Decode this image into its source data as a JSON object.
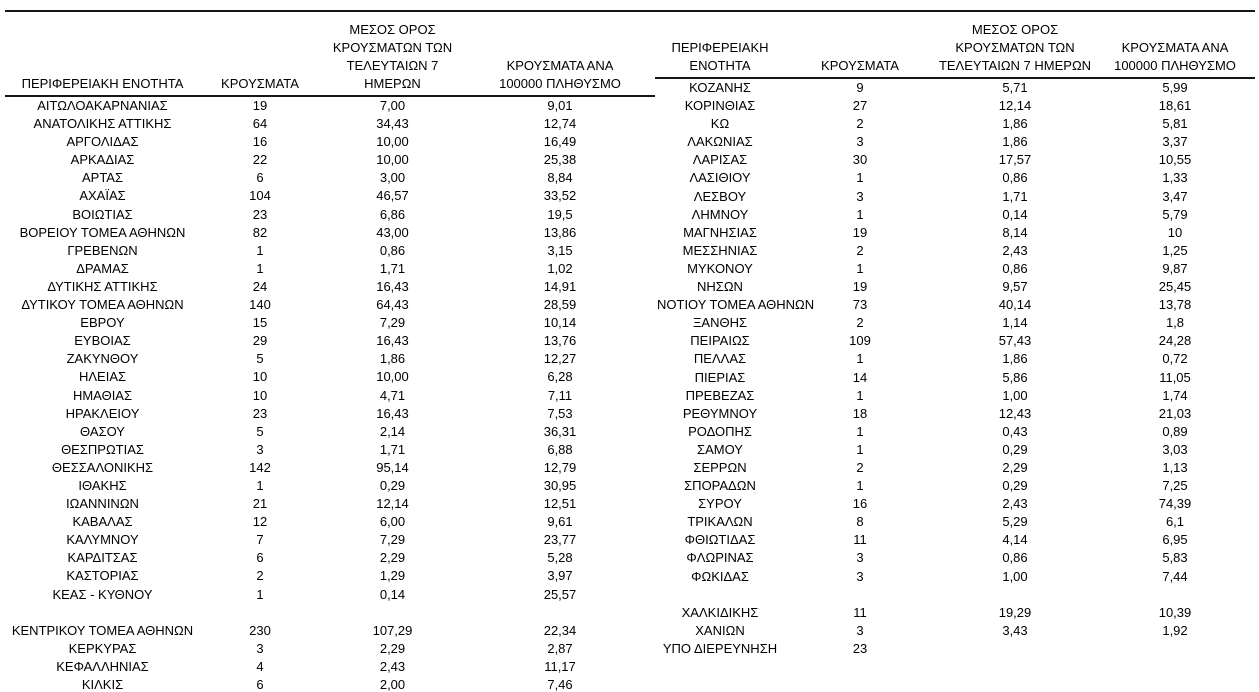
{
  "table": {
    "headers": {
      "region": "ΠΕΡΙΦΕΡΕΙΑΚΗ ΕΝΟΤΗΤΑ",
      "cases": "ΚΡΟΥΣΜΑΤΑ",
      "avg7": "ΜΕΣΟΣ ΟΡΟΣ\nΚΡΟΥΣΜΑΤΩΝ ΤΩΝ\nΤΕΛΕΥΤΑΙΩΝ 7 ΗΜΕΡΩΝ",
      "per100k": "ΚΡΟΥΣΜΑΤΑ ΑΝΑ\n100000 ΠΛΗΘΥΣΜΟ"
    },
    "left_rows": [
      [
        "ΑΙΤΩΛΟΑΚΑΡΝΑΝΙΑΣ",
        "19",
        "7,00",
        "9,01"
      ],
      [
        "ΑΝΑΤΟΛΙΚΗΣ ΑΤΤΙΚΗΣ",
        "64",
        "34,43",
        "12,74"
      ],
      [
        "ΑΡΓΟΛΙΔΑΣ",
        "16",
        "10,00",
        "16,49"
      ],
      [
        "ΑΡΚΑΔΙΑΣ",
        "22",
        "10,00",
        "25,38"
      ],
      [
        "ΑΡΤΑΣ",
        "6",
        "3,00",
        "8,84"
      ],
      [
        "ΑΧΑΪΑΣ",
        "104",
        "46,57",
        "33,52"
      ],
      [
        "ΒΟΙΩΤΙΑΣ",
        "23",
        "6,86",
        "19,5"
      ],
      [
        "ΒΟΡΕΙΟΥ ΤΟΜΕΑ ΑΘΗΝΩΝ",
        "82",
        "43,00",
        "13,86"
      ],
      [
        "ΓΡΕΒΕΝΩΝ",
        "1",
        "0,86",
        "3,15"
      ],
      [
        "ΔΡΑΜΑΣ",
        "1",
        "1,71",
        "1,02"
      ],
      [
        "ΔΥΤΙΚΗΣ ΑΤΤΙΚΗΣ",
        "24",
        "16,43",
        "14,91"
      ],
      [
        "ΔΥΤΙΚΟΥ ΤΟΜΕΑ ΑΘΗΝΩΝ",
        "140",
        "64,43",
        "28,59"
      ],
      [
        "ΕΒΡΟΥ",
        "15",
        "7,29",
        "10,14"
      ],
      [
        "ΕΥΒΟΙΑΣ",
        "29",
        "16,43",
        "13,76"
      ],
      [
        "ΖΑΚΥΝΘΟΥ",
        "5",
        "1,86",
        "12,27"
      ],
      [
        "ΗΛΕΙΑΣ",
        "10",
        "10,00",
        "6,28"
      ],
      [
        "ΗΜΑΘΙΑΣ",
        "10",
        "4,71",
        "7,11"
      ],
      [
        "ΗΡΑΚΛΕΙΟΥ",
        "23",
        "16,43",
        "7,53"
      ],
      [
        "ΘΑΣΟΥ",
        "5",
        "2,14",
        "36,31"
      ],
      [
        "ΘΕΣΠΡΩΤΙΑΣ",
        "3",
        "1,71",
        "6,88"
      ],
      [
        "ΘΕΣΣΑΛΟΝΙΚΗΣ",
        "142",
        "95,14",
        "12,79"
      ],
      [
        "ΙΘΑΚΗΣ",
        "1",
        "0,29",
        "30,95"
      ],
      [
        "ΙΩΑΝΝΙΝΩΝ",
        "21",
        "12,14",
        "12,51"
      ],
      [
        "ΚΑΒΑΛΑΣ",
        "12",
        "6,00",
        "9,61"
      ],
      [
        "ΚΑΛΥΜΝΟΥ",
        "7",
        "7,29",
        "23,77"
      ],
      [
        "ΚΑΡΔΙΤΣΑΣ",
        "6",
        "2,29",
        "5,28"
      ],
      [
        "ΚΑΣΤΟΡΙΑΣ",
        "2",
        "1,29",
        "3,97"
      ],
      [
        "ΚΕΑΣ - ΚΥΘΝΟΥ",
        "1",
        "0,14",
        "25,57"
      ],
      null,
      [
        "ΚΕΝΤΡΙΚΟΥ ΤΟΜΕΑ ΑΘΗΝΩΝ",
        "230",
        "107,29",
        "22,34"
      ],
      [
        "ΚΕΡΚΥΡΑΣ",
        "3",
        "2,29",
        "2,87"
      ],
      [
        "ΚΕΦΑΛΛΗΝΙΑΣ",
        "4",
        "2,43",
        "11,17"
      ],
      [
        "ΚΙΛΚΙΣ",
        "6",
        "2,00",
        "7,46"
      ]
    ],
    "right_rows": [
      [
        "ΚΟΖΑΝΗΣ",
        "9",
        "5,71",
        "5,99"
      ],
      [
        "ΚΟΡΙΝΘΙΑΣ",
        "27",
        "12,14",
        "18,61"
      ],
      [
        "ΚΩ",
        "2",
        "1,86",
        "5,81"
      ],
      [
        "ΛΑΚΩΝΙΑΣ",
        "3",
        "1,86",
        "3,37"
      ],
      [
        "ΛΑΡΙΣΑΣ",
        "30",
        "17,57",
        "10,55"
      ],
      [
        "ΛΑΣΙΘΙΟΥ",
        "1",
        "0,86",
        "1,33"
      ],
      [
        "ΛΕΣΒΟΥ",
        "3",
        "1,71",
        "3,47"
      ],
      [
        "ΛΗΜΝΟΥ",
        "1",
        "0,14",
        "5,79"
      ],
      [
        "ΜΑΓΝΗΣΙΑΣ",
        "19",
        "8,14",
        "10"
      ],
      [
        "ΜΕΣΣΗΝΙΑΣ",
        "2",
        "2,43",
        "1,25"
      ],
      [
        "ΜΥΚΟΝΟΥ",
        "1",
        "0,86",
        "9,87"
      ],
      [
        "ΝΗΣΩΝ",
        "19",
        "9,57",
        "25,45"
      ],
      [
        "ΝΟΤΙΟΥ ΤΟΜΕΑ ΑΘΗΝΩΝ",
        "73",
        "40,14",
        "13,78"
      ],
      [
        "ΞΑΝΘΗΣ",
        "2",
        "1,14",
        "1,8"
      ],
      [
        "ΠΕΙΡΑΙΩΣ",
        "109",
        "57,43",
        "24,28"
      ],
      [
        "ΠΕΛΛΑΣ",
        "1",
        "1,86",
        "0,72"
      ],
      [
        "ΠΙΕΡΙΑΣ",
        "14",
        "5,86",
        "11,05"
      ],
      [
        "ΠΡΕΒΕΖΑΣ",
        "1",
        "1,00",
        "1,74"
      ],
      [
        "ΡΕΘΥΜΝΟΥ",
        "18",
        "12,43",
        "21,03"
      ],
      [
        "ΡΟΔΟΠΗΣ",
        "1",
        "0,43",
        "0,89"
      ],
      [
        "ΣΑΜΟΥ",
        "1",
        "0,29",
        "3,03"
      ],
      [
        "ΣΕΡΡΩΝ",
        "2",
        "2,29",
        "1,13"
      ],
      [
        "ΣΠΟΡΑΔΩΝ",
        "1",
        "0,29",
        "7,25"
      ],
      [
        "ΣΥΡΟΥ",
        "16",
        "2,43",
        "74,39"
      ],
      [
        "ΤΡΙΚΑΛΩΝ",
        "8",
        "5,29",
        "6,1"
      ],
      [
        "ΦΘΙΩΤΙΔΑΣ",
        "11",
        "4,14",
        "6,95"
      ],
      [
        "ΦΛΩΡΙΝΑΣ",
        "3",
        "0,86",
        "5,83"
      ],
      [
        "ΦΩΚΙΔΑΣ",
        "3",
        "1,00",
        "7,44"
      ],
      null,
      [
        "ΧΑΛΚΙΔΙΚΗΣ",
        "11",
        "19,29",
        "10,39"
      ],
      [
        "ΧΑΝΙΩΝ",
        "3",
        "3,43",
        "1,92"
      ],
      [
        "ΥΠΟ ΔΙΕΡΕΥΝΗΣΗ",
        "23",
        "",
        ""
      ]
    ],
    "colors": {
      "text": "#000000",
      "rule": "#161616",
      "bottom_rule": "#3f3f3f",
      "background": "#ffffff"
    }
  }
}
